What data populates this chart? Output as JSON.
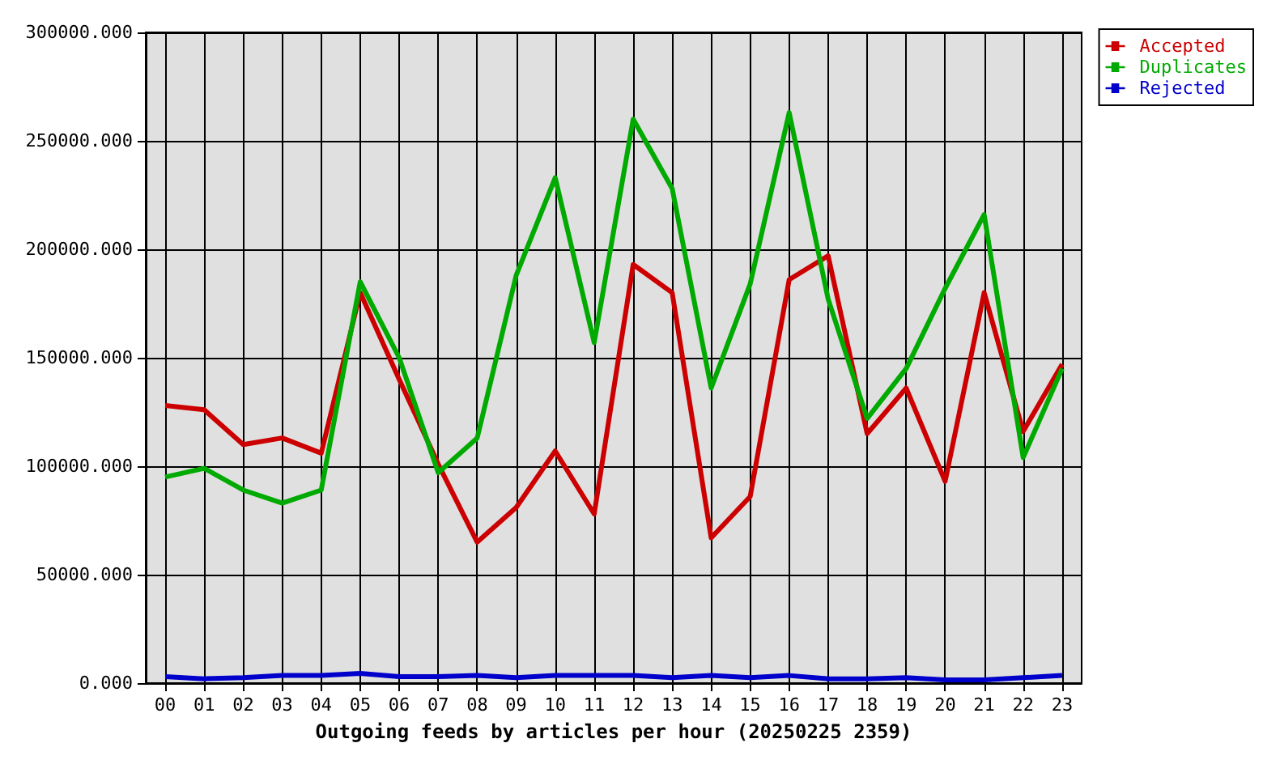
{
  "chart_data": {
    "type": "line",
    "xlabel": "Outgoing feeds by articles per hour (20250225 2359)",
    "categories": [
      "00",
      "01",
      "02",
      "03",
      "04",
      "05",
      "06",
      "07",
      "08",
      "09",
      "10",
      "11",
      "12",
      "13",
      "14",
      "15",
      "16",
      "17",
      "18",
      "19",
      "20",
      "21",
      "22",
      "23"
    ],
    "series": [
      {
        "name": "Accepted",
        "color": "#cc0000",
        "values": [
          128000,
          126000,
          110000,
          113000,
          106000,
          180000,
          140000,
          101000,
          65000,
          81000,
          107000,
          78000,
          193000,
          180000,
          67000,
          86000,
          186000,
          197000,
          115000,
          136000,
          93000,
          180000,
          116000,
          147000
        ]
      },
      {
        "name": "Duplicates",
        "color": "#00aa00",
        "values": [
          95000,
          99000,
          89000,
          83000,
          89000,
          185000,
          150000,
          97000,
          113000,
          188000,
          233000,
          157000,
          260000,
          228000,
          136000,
          184000,
          263000,
          177000,
          122000,
          145000,
          182000,
          216000,
          104000,
          145000
        ]
      },
      {
        "name": "Rejected",
        "color": "#0000cc",
        "values": [
          3000,
          2000,
          2500,
          3500,
          3500,
          4500,
          3000,
          3000,
          3500,
          2500,
          3500,
          3500,
          3500,
          2500,
          3500,
          2500,
          3500,
          2000,
          2000,
          2500,
          1500,
          1500,
          2500,
          3500
        ]
      }
    ],
    "ylim": [
      0,
      300000
    ],
    "yticks": [
      {
        "value": 0,
        "label": "0.000"
      },
      {
        "value": 50000,
        "label": "50000.000"
      },
      {
        "value": 100000,
        "label": "100000.000"
      },
      {
        "value": 150000,
        "label": "150000.000"
      },
      {
        "value": 200000,
        "label": "200000.000"
      },
      {
        "value": 250000,
        "label": "250000.000"
      },
      {
        "value": 300000,
        "label": "300000.000"
      }
    ],
    "grid": true,
    "legend": "top right",
    "marker": "none",
    "line_style": "solid"
  }
}
